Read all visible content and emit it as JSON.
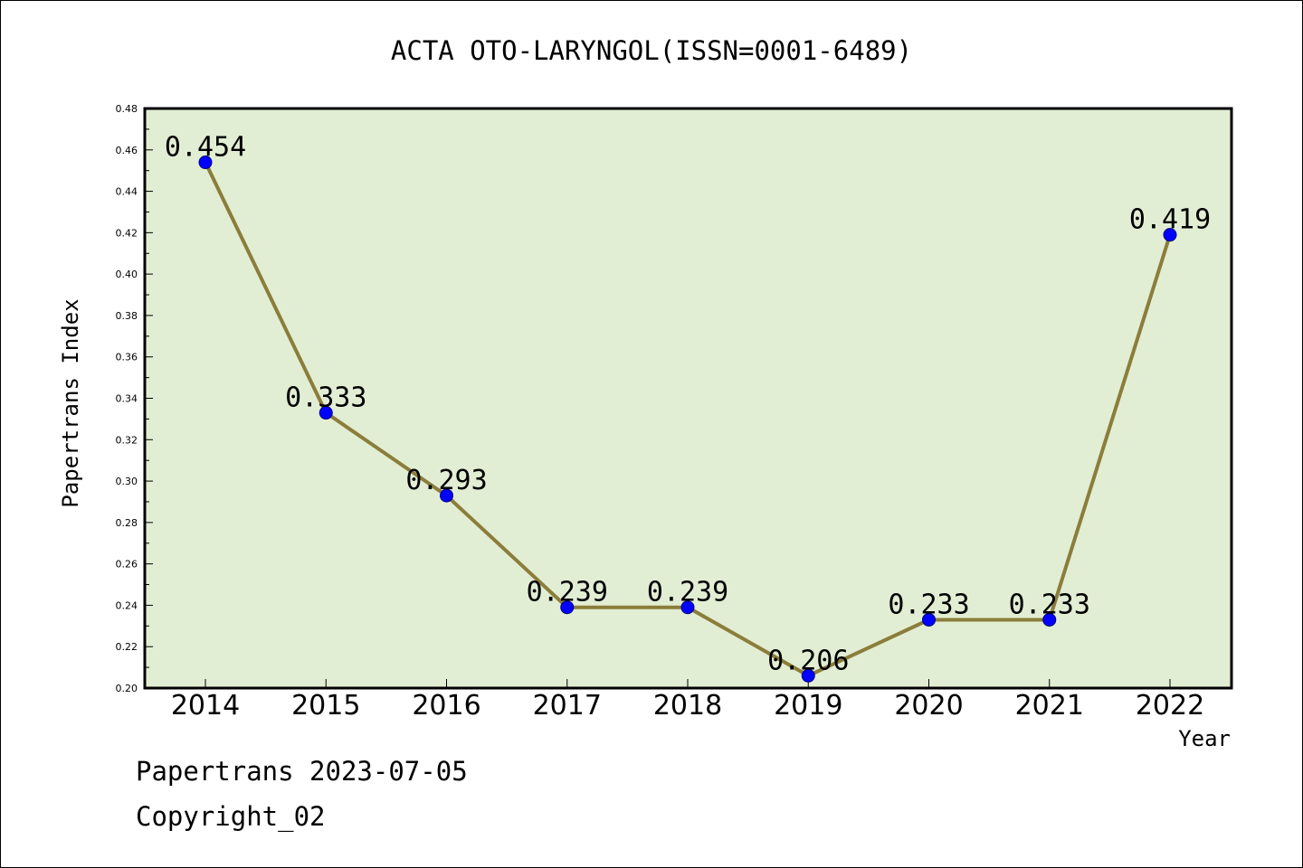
{
  "chart_data": {
    "type": "line",
    "title": "ACTA OTO-LARYNGOL(ISSN=0001-6489)",
    "xlabel": "Year",
    "ylabel": "Papertrans Index",
    "categories": [
      "2014",
      "2015",
      "2016",
      "2017",
      "2018",
      "2019",
      "2020",
      "2021",
      "2022"
    ],
    "series": [
      {
        "values": [
          0.454,
          0.333,
          0.293,
          0.239,
          0.239,
          0.206,
          0.233,
          0.233,
          0.419
        ],
        "labels": [
          "0.454",
          "0.333",
          "0.293",
          "0.239",
          "0.239",
          "0.206",
          "0.233",
          "0.233",
          "0.419"
        ]
      }
    ],
    "ylim": [
      0.2,
      0.48
    ],
    "yticks": [
      "0.20",
      "0.22",
      "0.24",
      "0.26",
      "0.28",
      "0.30",
      "0.32",
      "0.34",
      "0.36",
      "0.38",
      "0.40",
      "0.42",
      "0.44",
      "0.46",
      "0.48"
    ],
    "grid": false,
    "colors": {
      "plot_bg": "#e1eed4",
      "line": "#8b7d3a",
      "marker": "#0000ff"
    }
  },
  "footer": {
    "line1": "Papertrans 2023-07-05",
    "line2": "Copyright_02"
  }
}
